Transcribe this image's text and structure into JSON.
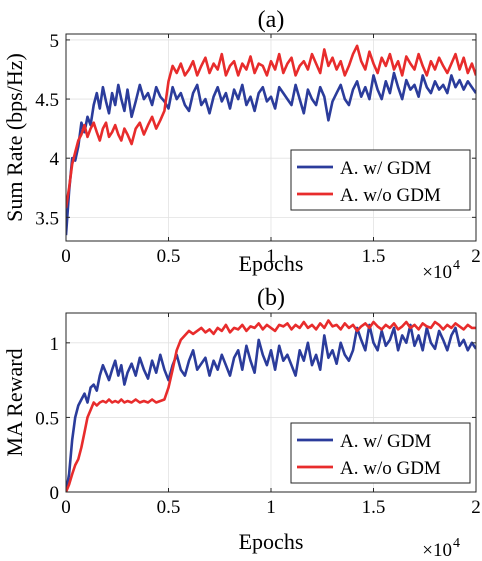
{
  "chart_data": [
    {
      "type": "line",
      "title": "(a)",
      "xlabel": "Epochs",
      "ylabel": "Sum Rate (bps/Hz)",
      "xlim": [
        0,
        20000
      ],
      "ylim": [
        3.3,
        5.05
      ],
      "x_multiplier": "×10",
      "x_multiplier_exp": "4",
      "xticks": [
        0,
        5000,
        10000,
        15000,
        20000
      ],
      "xtick_labels": [
        "0",
        "0.5",
        "1",
        "1.5",
        "2"
      ],
      "yticks": [
        3.5,
        4,
        4.5,
        5
      ],
      "ytick_labels": [
        "3.5",
        "4",
        "4.5",
        "5"
      ],
      "grid": true,
      "legend_position": "bottom-right",
      "series": [
        {
          "name": "A. w/ GDM",
          "color": "#2b3c9b",
          "x": [
            0,
            150,
            300,
            450,
            600,
            750,
            900,
            1050,
            1200,
            1350,
            1500,
            1650,
            1800,
            1950,
            2100,
            2250,
            2400,
            2550,
            2700,
            2850,
            3000,
            3200,
            3400,
            3600,
            3800,
            4000,
            4200,
            4400,
            4600,
            4800,
            5000,
            5200,
            5400,
            5600,
            5800,
            6000,
            6200,
            6400,
            6600,
            6800,
            7000,
            7200,
            7400,
            7600,
            7800,
            8000,
            8200,
            8400,
            8600,
            8800,
            9000,
            9200,
            9400,
            9600,
            9800,
            10000,
            10200,
            10400,
            10600,
            10800,
            11000,
            11200,
            11400,
            11600,
            11800,
            12000,
            12200,
            12400,
            12600,
            12800,
            13000,
            13200,
            13400,
            13600,
            13800,
            14000,
            14200,
            14400,
            14600,
            14800,
            15000,
            15200,
            15400,
            15600,
            15800,
            16000,
            16200,
            16400,
            16600,
            16800,
            17000,
            17200,
            17400,
            17600,
            17800,
            18000,
            18200,
            18400,
            18600,
            18800,
            19000,
            19200,
            19400,
            19600,
            19800,
            20000
          ],
          "y": [
            3.35,
            3.72,
            4.0,
            3.98,
            4.1,
            4.3,
            4.22,
            4.35,
            4.28,
            4.45,
            4.55,
            4.42,
            4.6,
            4.48,
            4.38,
            4.55,
            4.45,
            4.62,
            4.5,
            4.4,
            4.58,
            4.35,
            4.48,
            4.62,
            4.5,
            4.55,
            4.45,
            4.6,
            4.52,
            4.48,
            4.42,
            4.6,
            4.5,
            4.55,
            4.45,
            4.4,
            4.55,
            4.62,
            4.45,
            4.5,
            4.38,
            4.52,
            4.6,
            4.48,
            4.55,
            4.42,
            4.58,
            4.5,
            4.62,
            4.45,
            4.52,
            4.4,
            4.55,
            4.6,
            4.48,
            4.52,
            4.42,
            4.6,
            4.55,
            4.5,
            4.45,
            4.62,
            4.5,
            4.38,
            4.58,
            4.5,
            4.45,
            4.6,
            4.52,
            4.32,
            4.48,
            4.55,
            4.62,
            4.5,
            4.45,
            4.58,
            4.65,
            4.52,
            4.6,
            4.5,
            4.7,
            4.58,
            4.5,
            4.65,
            4.55,
            4.72,
            4.6,
            4.5,
            4.66,
            4.58,
            4.62,
            4.52,
            4.7,
            4.6,
            4.55,
            4.65,
            4.58,
            4.62,
            4.55,
            4.7,
            4.6,
            4.66,
            4.58,
            4.65,
            4.6,
            4.55
          ]
        },
        {
          "name": "A. w/o GDM",
          "color": "#e82c2c",
          "x": [
            0,
            150,
            300,
            450,
            600,
            750,
            900,
            1050,
            1200,
            1350,
            1500,
            1650,
            1800,
            1950,
            2100,
            2250,
            2400,
            2550,
            2700,
            2850,
            3000,
            3200,
            3400,
            3600,
            3800,
            4000,
            4200,
            4400,
            4600,
            4800,
            5000,
            5200,
            5400,
            5600,
            5800,
            6000,
            6200,
            6400,
            6600,
            6800,
            7000,
            7200,
            7400,
            7600,
            7800,
            8000,
            8200,
            8400,
            8600,
            8800,
            9000,
            9200,
            9400,
            9600,
            9800,
            10000,
            10200,
            10400,
            10600,
            10800,
            11000,
            11200,
            11400,
            11600,
            11800,
            12000,
            12200,
            12400,
            12600,
            12800,
            13000,
            13200,
            13400,
            13600,
            13800,
            14000,
            14200,
            14400,
            14600,
            14800,
            15000,
            15200,
            15400,
            15600,
            15800,
            16000,
            16200,
            16400,
            16600,
            16800,
            17000,
            17200,
            17400,
            17600,
            17800,
            18000,
            18200,
            18400,
            18600,
            18800,
            19000,
            19200,
            19400,
            19600,
            19800,
            20000
          ],
          "y": [
            3.58,
            3.75,
            3.95,
            4.05,
            4.15,
            4.2,
            4.28,
            4.18,
            4.25,
            4.3,
            4.22,
            4.15,
            4.25,
            4.3,
            4.18,
            4.22,
            4.28,
            4.2,
            4.15,
            4.25,
            4.2,
            4.12,
            4.25,
            4.3,
            4.2,
            4.28,
            4.35,
            4.25,
            4.32,
            4.4,
            4.65,
            4.78,
            4.72,
            4.8,
            4.7,
            4.75,
            4.82,
            4.7,
            4.78,
            4.85,
            4.72,
            4.8,
            4.75,
            4.88,
            4.7,
            4.78,
            4.82,
            4.7,
            4.8,
            4.75,
            4.86,
            4.72,
            4.8,
            4.78,
            4.7,
            4.82,
            4.75,
            4.88,
            4.72,
            4.8,
            4.85,
            4.7,
            4.78,
            4.82,
            4.75,
            4.88,
            4.8,
            4.72,
            4.92,
            4.78,
            4.85,
            4.75,
            4.82,
            4.7,
            4.78,
            4.88,
            4.95,
            4.82,
            4.75,
            4.9,
            4.8,
            4.72,
            4.85,
            4.78,
            4.88,
            4.75,
            4.82,
            4.7,
            4.86,
            4.8,
            4.75,
            4.88,
            4.78,
            4.7,
            4.82,
            4.75,
            4.85,
            4.78,
            4.72,
            4.8,
            4.88,
            4.75,
            4.85,
            4.72,
            4.8,
            4.7
          ]
        }
      ]
    },
    {
      "type": "line",
      "title": "(b)",
      "xlabel": "Epochs",
      "ylabel": "MA Reward",
      "xlim": [
        0,
        20000
      ],
      "ylim": [
        0,
        1.2
      ],
      "x_multiplier": "×10",
      "x_multiplier_exp": "4",
      "xticks": [
        0,
        5000,
        10000,
        15000,
        20000
      ],
      "xtick_labels": [
        "0",
        "0.5",
        "1",
        "1.5",
        "2"
      ],
      "yticks": [
        0,
        0.5,
        1
      ],
      "ytick_labels": [
        "0",
        "0.5",
        "1"
      ],
      "grid": true,
      "legend_position": "bottom-right",
      "series": [
        {
          "name": "A. w/ GDM",
          "color": "#2b3c9b",
          "x": [
            0,
            150,
            300,
            450,
            600,
            750,
            900,
            1050,
            1200,
            1350,
            1500,
            1650,
            1800,
            1950,
            2100,
            2250,
            2400,
            2550,
            2700,
            2850,
            3000,
            3200,
            3400,
            3600,
            3800,
            4000,
            4200,
            4400,
            4600,
            4800,
            5000,
            5200,
            5400,
            5600,
            5800,
            6000,
            6200,
            6400,
            6600,
            6800,
            7000,
            7200,
            7400,
            7600,
            7800,
            8000,
            8200,
            8400,
            8600,
            8800,
            9000,
            9200,
            9400,
            9600,
            9800,
            10000,
            10200,
            10400,
            10600,
            10800,
            11000,
            11200,
            11400,
            11600,
            11800,
            12000,
            12200,
            12400,
            12600,
            12800,
            13000,
            13200,
            13400,
            13600,
            13800,
            14000,
            14200,
            14400,
            14600,
            14800,
            15000,
            15200,
            15400,
            15600,
            15800,
            16000,
            16200,
            16400,
            16600,
            16800,
            17000,
            17200,
            17400,
            17600,
            17800,
            18000,
            18200,
            18400,
            18600,
            18800,
            19000,
            19200,
            19400,
            19600,
            19800,
            20000
          ],
          "y": [
            0.0,
            0.12,
            0.35,
            0.5,
            0.58,
            0.62,
            0.66,
            0.6,
            0.7,
            0.72,
            0.68,
            0.78,
            0.85,
            0.8,
            0.75,
            0.82,
            0.88,
            0.78,
            0.85,
            0.72,
            0.8,
            0.86,
            0.78,
            0.9,
            0.82,
            0.76,
            0.88,
            0.8,
            0.92,
            0.82,
            0.75,
            0.85,
            0.92,
            0.82,
            0.78,
            0.88,
            0.95,
            0.82,
            0.86,
            0.9,
            0.78,
            0.88,
            0.82,
            0.92,
            0.85,
            0.78,
            0.9,
            0.95,
            0.82,
            0.98,
            0.88,
            0.8,
            1.02,
            0.92,
            0.85,
            0.95,
            0.82,
            0.98,
            0.88,
            0.92,
            0.85,
            0.78,
            0.95,
            0.88,
            1.0,
            0.85,
            0.92,
            0.82,
            1.05,
            0.9,
            0.95,
            0.86,
            1.0,
            0.92,
            0.88,
            0.95,
            1.1,
            1.02,
            0.95,
            1.12,
            1.0,
            0.95,
            1.08,
            0.98,
            1.02,
            1.1,
            0.95,
            1.05,
            1.0,
            1.12,
            0.98,
            1.05,
            0.95,
            1.1,
            1.0,
            0.96,
            1.08,
            1.02,
            0.95,
            1.05,
            1.1,
            0.98,
            1.02,
            0.95,
            1.0,
            0.96
          ]
        },
        {
          "name": "A. w/o GDM",
          "color": "#e82c2c",
          "x": [
            0,
            150,
            300,
            450,
            600,
            750,
            900,
            1050,
            1200,
            1350,
            1500,
            1650,
            1800,
            1950,
            2100,
            2250,
            2400,
            2550,
            2700,
            2850,
            3000,
            3200,
            3400,
            3600,
            3800,
            4000,
            4200,
            4400,
            4600,
            4800,
            5000,
            5200,
            5400,
            5600,
            5800,
            6000,
            6200,
            6400,
            6600,
            6800,
            7000,
            7200,
            7400,
            7600,
            7800,
            8000,
            8200,
            8400,
            8600,
            8800,
            9000,
            9200,
            9400,
            9600,
            9800,
            10000,
            10200,
            10400,
            10600,
            10800,
            11000,
            11200,
            11400,
            11600,
            11800,
            12000,
            12200,
            12400,
            12600,
            12800,
            13000,
            13200,
            13400,
            13600,
            13800,
            14000,
            14200,
            14400,
            14600,
            14800,
            15000,
            15200,
            15400,
            15600,
            15800,
            16000,
            16200,
            16400,
            16600,
            16800,
            17000,
            17200,
            17400,
            17600,
            17800,
            18000,
            18200,
            18400,
            18600,
            18800,
            19000,
            19200,
            19400,
            19600,
            19800,
            20000
          ],
          "y": [
            0.0,
            0.05,
            0.12,
            0.18,
            0.22,
            0.3,
            0.4,
            0.5,
            0.55,
            0.6,
            0.58,
            0.6,
            0.61,
            0.6,
            0.62,
            0.6,
            0.61,
            0.6,
            0.62,
            0.6,
            0.61,
            0.6,
            0.62,
            0.6,
            0.61,
            0.6,
            0.62,
            0.6,
            0.61,
            0.62,
            0.7,
            0.82,
            0.95,
            1.02,
            1.05,
            1.08,
            1.06,
            1.08,
            1.1,
            1.07,
            1.09,
            1.06,
            1.1,
            1.08,
            1.12,
            1.07,
            1.1,
            1.09,
            1.12,
            1.08,
            1.11,
            1.1,
            1.13,
            1.09,
            1.12,
            1.1,
            1.08,
            1.12,
            1.11,
            1.13,
            1.09,
            1.12,
            1.1,
            1.14,
            1.1,
            1.12,
            1.09,
            1.13,
            1.1,
            1.15,
            1.11,
            1.12,
            1.09,
            1.13,
            1.1,
            1.12,
            1.08,
            1.11,
            1.13,
            1.1,
            1.14,
            1.11,
            1.09,
            1.12,
            1.1,
            1.13,
            1.09,
            1.11,
            1.14,
            1.1,
            1.12,
            1.09,
            1.13,
            1.11,
            1.1,
            1.14,
            1.12,
            1.09,
            1.12,
            1.1,
            1.13,
            1.11,
            1.09,
            1.12,
            1.1,
            1.1
          ]
        }
      ]
    }
  ]
}
